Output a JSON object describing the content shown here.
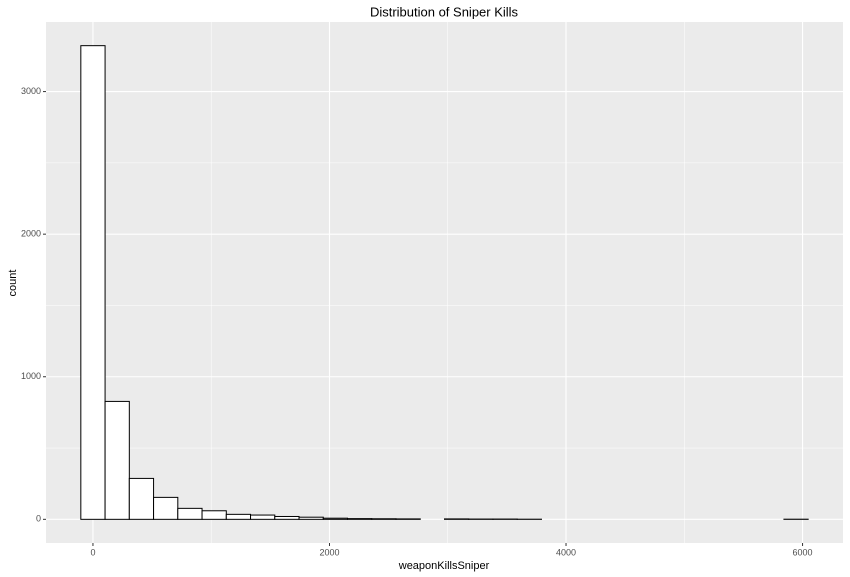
{
  "chart_data": {
    "type": "histogram",
    "title": "Distribution of Sniper Kills",
    "x_label": "weaponKillsSniper",
    "y_label": "count",
    "bins": [
      -102.5,
      102.5,
      307.5,
      512.5,
      717.5,
      922.5,
      1127.5,
      1332.5,
      1537.5,
      1742.5,
      1947.5,
      2152.5,
      2357.5,
      2562.5,
      2767.5,
      2972.5,
      3177.5,
      3382.5,
      3587.5,
      3792.5,
      3997.5,
      4202.5,
      4407.5,
      4612.5,
      4817.5,
      5022.5,
      5227.5,
      5432.5,
      5637.5,
      5842.5,
      6047.5
    ],
    "counts": [
      3322,
      827,
      287,
      154,
      77,
      60,
      35,
      30,
      20,
      15,
      8,
      5,
      4,
      3,
      0,
      3,
      2,
      2,
      1,
      0,
      0,
      0,
      0,
      0,
      0,
      0,
      0,
      0,
      0,
      1
    ],
    "color": "#ffffff",
    "edge_color": "#000000",
    "xlim": [
      -397,
      6342
    ],
    "xticks": [
      0,
      2000,
      4000,
      6000
    ],
    "ylim": [
      -166,
      3488
    ],
    "yticks": [
      0,
      1000,
      2000,
      3000
    ],
    "grid": true
  }
}
